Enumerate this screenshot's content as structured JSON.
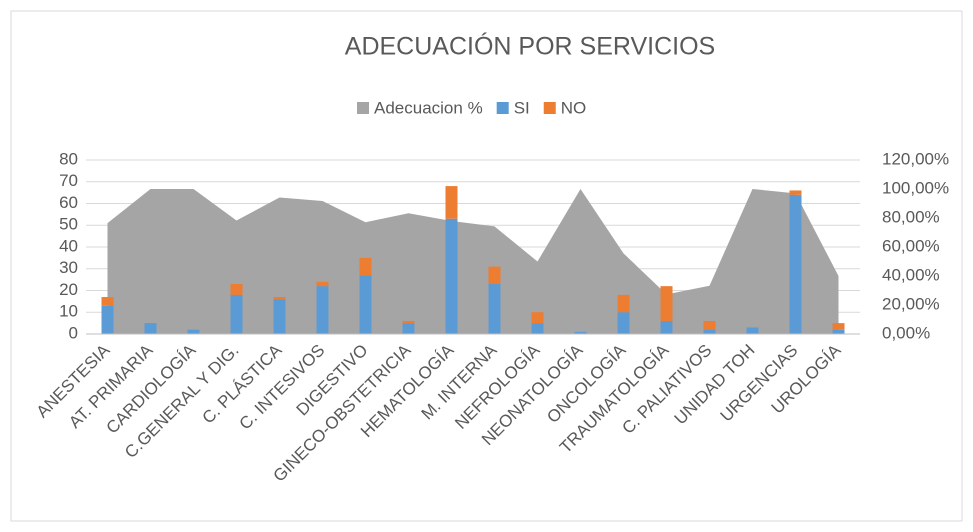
{
  "chart_data": {
    "type": "bar_area",
    "title": "ADECUACIÓN POR SERVICIOS",
    "categories": [
      "ANESTESIA",
      "AT. PRIMARIA",
      "CARDIOLOGÍA",
      "C.GENERAL Y DIG.",
      "C. PLÁSTICA",
      "C. INTESIVOS",
      "DIGESTIVO",
      "GINECO-OBSTETRICIA",
      "HEMATOLOGÍA",
      "M. INTERNA",
      "NEFROLOGÍA",
      "NEONATOLOGÍA",
      "ONCOLOGÍA",
      "TRAUMATOLOGÍA",
      "C. PALIATIVOS",
      "UNIDAD TOH",
      "URGENCIAS",
      "UROLOGÍA"
    ],
    "series": [
      {
        "name": "Adecuacion %",
        "color": "#a5a5a5",
        "axis": "y2",
        "kind": "area",
        "values": [
          76.5,
          100,
          100,
          78.3,
          94.1,
          91.7,
          77.1,
          83.3,
          77.9,
          74.2,
          50,
          100,
          55.6,
          27.3,
          33.3,
          100,
          97,
          40
        ]
      },
      {
        "name": "SI",
        "color": "#5b9bd5",
        "kind": "bar",
        "values": [
          13,
          5,
          2,
          18,
          16,
          22,
          27,
          5,
          53,
          23,
          5,
          1,
          10,
          6,
          2,
          3,
          64,
          2
        ]
      },
      {
        "name": "NO",
        "color": "#ed7d31",
        "kind": "bar",
        "values": [
          4,
          0,
          0,
          5,
          1,
          2,
          8,
          1,
          15,
          8,
          5,
          0,
          8,
          16,
          4,
          0,
          2,
          3
        ]
      }
    ],
    "ylim": [
      0,
      80
    ],
    "yticks": [
      0,
      10,
      20,
      30,
      40,
      50,
      60,
      70,
      80
    ],
    "y2lim": [
      0,
      120
    ],
    "y2ticks": [
      {
        "value": 0,
        "label": "0,00%"
      },
      {
        "value": 20,
        "label": "20,00%"
      },
      {
        "value": 40,
        "label": "40,00%"
      },
      {
        "value": 60,
        "label": "60,00%"
      },
      {
        "value": 80,
        "label": "80,00%"
      },
      {
        "value": 100,
        "label": "100,00%"
      },
      {
        "value": 120,
        "label": "120,00%"
      }
    ],
    "grid": true,
    "legend": "top"
  }
}
